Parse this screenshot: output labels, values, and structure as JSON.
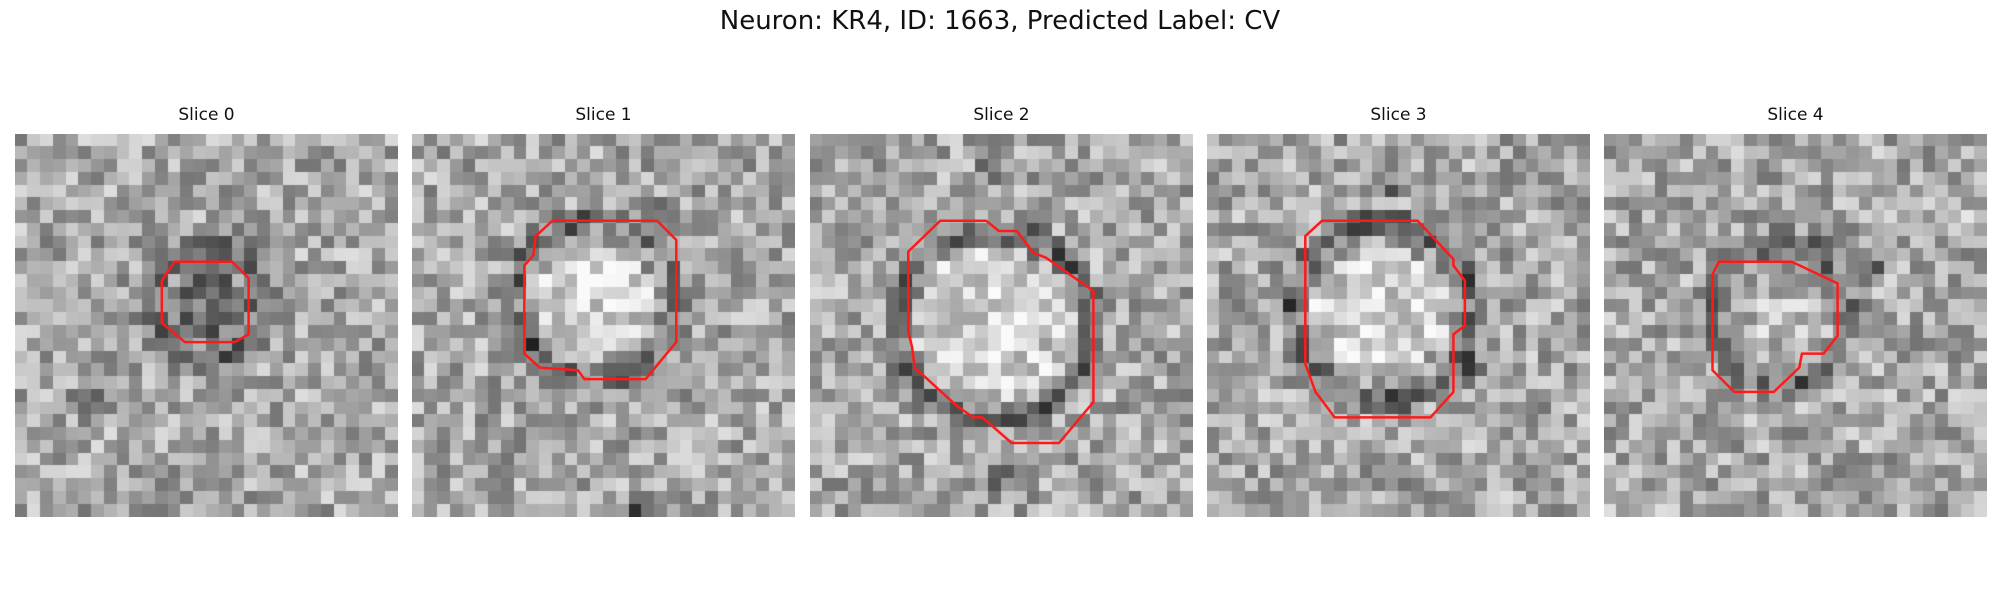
{
  "figure": {
    "title": "Neuron: KR4, ID: 1663, Predicted Label: CV"
  },
  "colors": {
    "contour": "#ff1a1a",
    "background": "#ffffff"
  },
  "slices": [
    {
      "title": "Slice 0"
    },
    {
      "title": "Slice 1"
    },
    {
      "title": "Slice 2"
    },
    {
      "title": "Slice 3"
    },
    {
      "title": "Slice 4"
    }
  ]
}
